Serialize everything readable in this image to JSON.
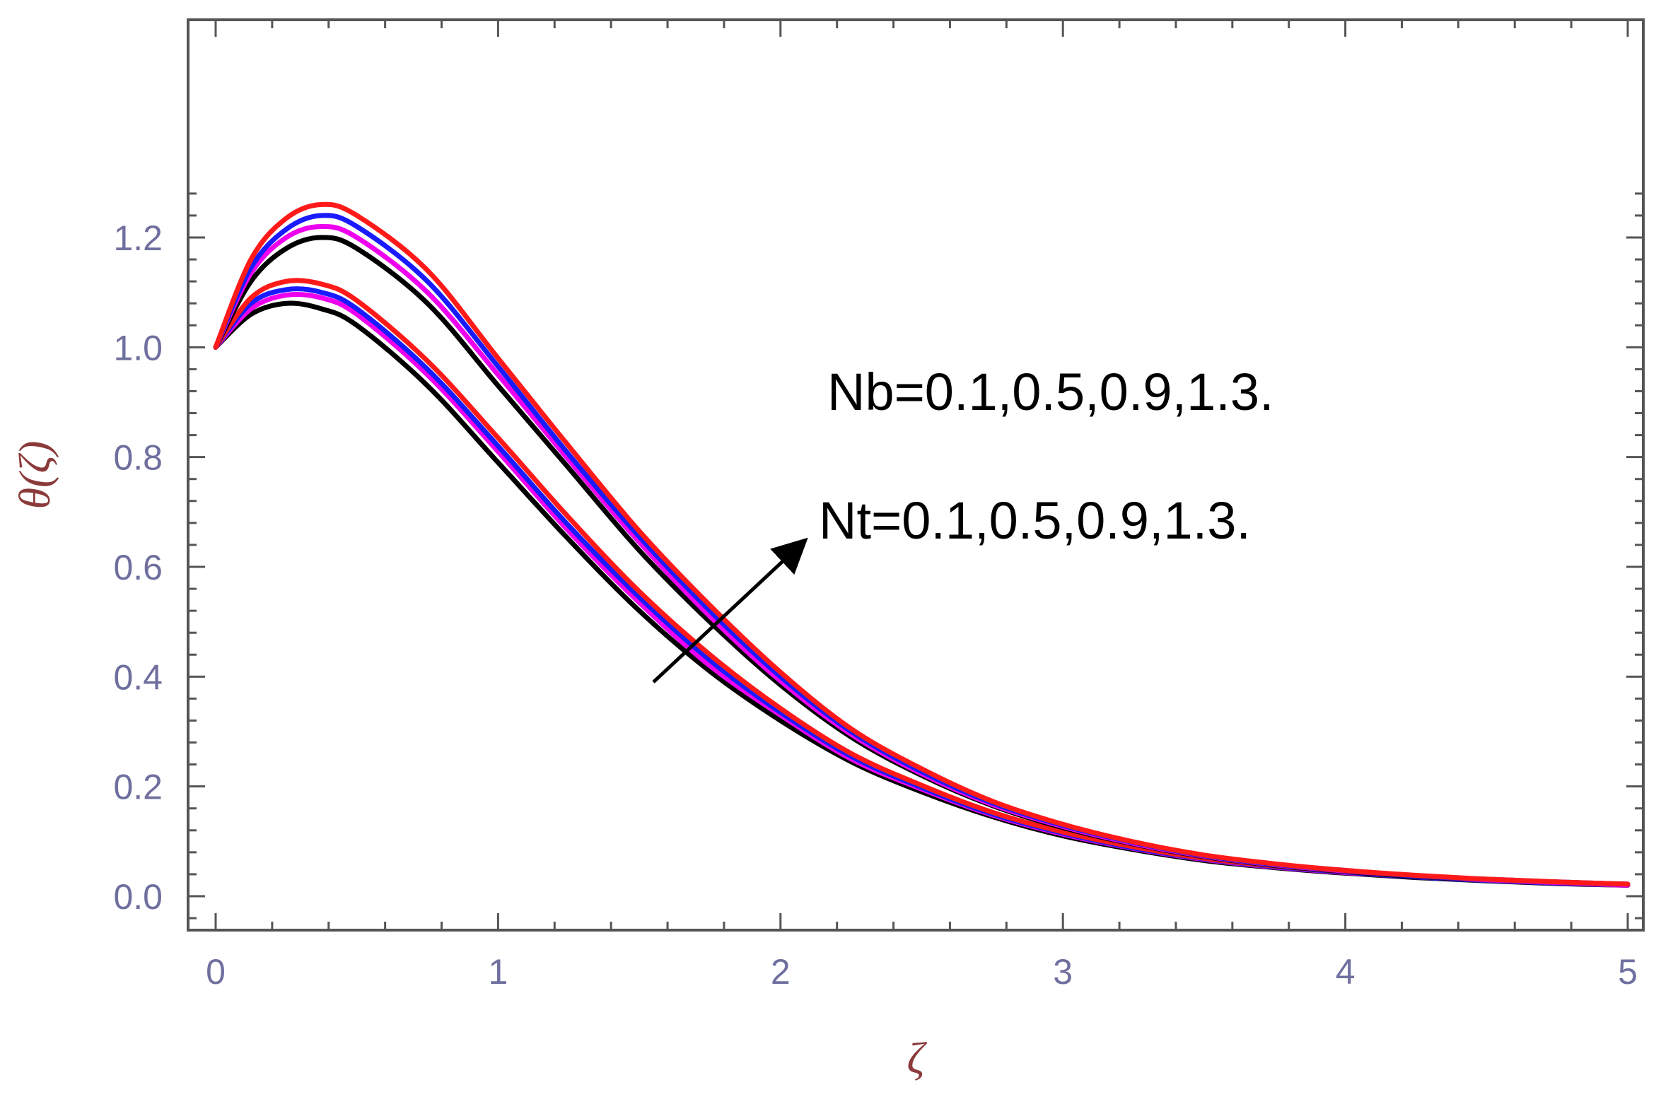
{
  "chart_data": {
    "type": "line",
    "title": "",
    "xlabel": "ζ",
    "ylabel": "θ(ζ)",
    "xlim": [
      0,
      5
    ],
    "ylim": [
      -0.05,
      1.33
    ],
    "x_ticks": [
      "0",
      "1",
      "2",
      "3",
      "4",
      "5"
    ],
    "y_ticks": [
      "0.0",
      "0.2",
      "0.4",
      "0.6",
      "0.8",
      "1.0",
      "1.2"
    ],
    "grid": false,
    "legend": "none",
    "annotations": [
      {
        "text": "Nb=0.1,0.5,0.9,1.3."
      },
      {
        "text": "Nt=0.1,0.5,0.9,1.3."
      }
    ],
    "arrow": {
      "from": [
        1.55,
        0.39
      ],
      "to": [
        2.07,
        0.64
      ]
    },
    "colors": {
      "axis": "#555555",
      "tick_label": "#6f6f9f",
      "axis_title": "#8b3a3a",
      "black": "#000000",
      "magenta": "#ee00ee",
      "blue": "#1a1aff",
      "red": "#ff1a1a"
    },
    "x": [
      0,
      0.125,
      0.25,
      0.375,
      0.5,
      0.75,
      1,
      1.25,
      1.5,
      1.75,
      2,
      2.25,
      2.5,
      2.75,
      3,
      3.25,
      3.5,
      3.75,
      4,
      4.25,
      4.5,
      4.75,
      5
    ],
    "series": [
      {
        "color": "#000000",
        "values": [
          1.0,
          1.06,
          1.08,
          1.07,
          1.04,
          0.93,
          0.79,
          0.65,
          0.52,
          0.41,
          0.32,
          0.245,
          0.19,
          0.145,
          0.11,
          0.085,
          0.065,
          0.052,
          0.042,
          0.034,
          0.028,
          0.023,
          0.02
        ]
      },
      {
        "color": "#ee00ee",
        "values": [
          1.0,
          1.07,
          1.095,
          1.09,
          1.06,
          0.95,
          0.81,
          0.665,
          0.535,
          0.42,
          0.33,
          0.25,
          0.195,
          0.148,
          0.113,
          0.087,
          0.067,
          0.053,
          0.043,
          0.035,
          0.029,
          0.024,
          0.02
        ]
      },
      {
        "color": "#1a1aff",
        "values": [
          1.0,
          1.08,
          1.105,
          1.1,
          1.07,
          0.96,
          0.82,
          0.675,
          0.545,
          0.43,
          0.335,
          0.255,
          0.198,
          0.15,
          0.115,
          0.088,
          0.068,
          0.054,
          0.044,
          0.035,
          0.029,
          0.024,
          0.021
        ]
      },
      {
        "color": "#ff1a1a",
        "values": [
          1.0,
          1.09,
          1.12,
          1.115,
          1.085,
          0.975,
          0.835,
          0.69,
          0.555,
          0.44,
          0.342,
          0.26,
          0.202,
          0.153,
          0.117,
          0.09,
          0.069,
          0.055,
          0.045,
          0.036,
          0.03,
          0.025,
          0.021
        ]
      },
      {
        "color": "#000000",
        "values": [
          1.0,
          1.12,
          1.18,
          1.2,
          1.18,
          1.08,
          0.93,
          0.78,
          0.63,
          0.5,
          0.385,
          0.29,
          0.22,
          0.165,
          0.125,
          0.095,
          0.072,
          0.056,
          0.045,
          0.036,
          0.03,
          0.025,
          0.021
        ]
      },
      {
        "color": "#ee00ee",
        "values": [
          1.0,
          1.135,
          1.2,
          1.22,
          1.2,
          1.1,
          0.95,
          0.795,
          0.645,
          0.51,
          0.392,
          0.295,
          0.223,
          0.167,
          0.127,
          0.096,
          0.073,
          0.057,
          0.046,
          0.037,
          0.03,
          0.025,
          0.021
        ]
      },
      {
        "color": "#1a1aff",
        "values": [
          1.0,
          1.145,
          1.215,
          1.24,
          1.22,
          1.12,
          0.965,
          0.805,
          0.655,
          0.52,
          0.4,
          0.3,
          0.227,
          0.17,
          0.129,
          0.098,
          0.074,
          0.058,
          0.047,
          0.037,
          0.031,
          0.026,
          0.022
        ]
      },
      {
        "color": "#ff1a1a",
        "values": [
          1.0,
          1.16,
          1.235,
          1.26,
          1.24,
          1.14,
          0.98,
          0.82,
          0.665,
          0.53,
          0.408,
          0.305,
          0.232,
          0.173,
          0.131,
          0.099,
          0.075,
          0.059,
          0.047,
          0.038,
          0.031,
          0.026,
          0.022
        ]
      }
    ]
  }
}
